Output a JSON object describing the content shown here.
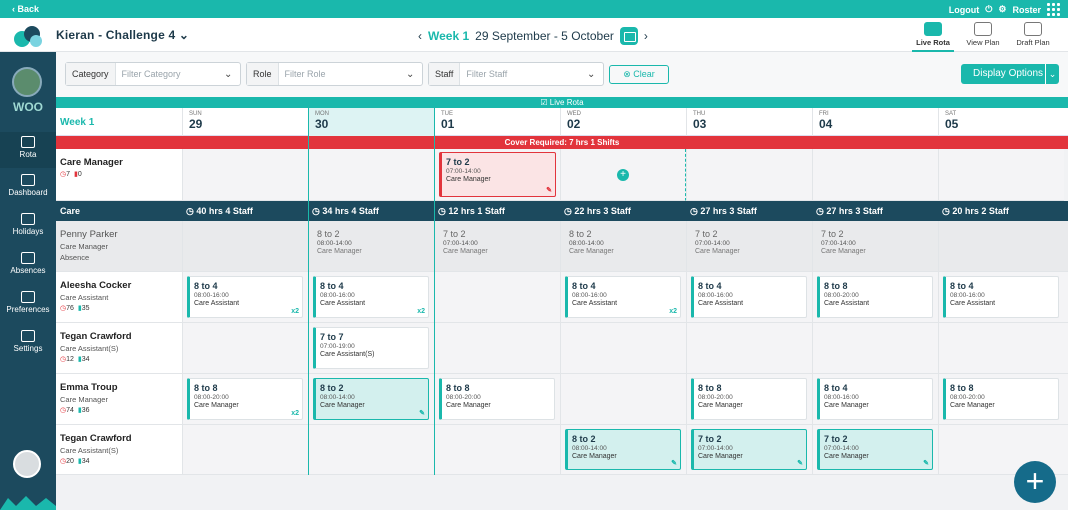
{
  "topbar": {
    "back": "‹ Back",
    "logout": "Logout",
    "roster": "Roster"
  },
  "header": {
    "home_title": "Kieran - Challenge 4",
    "week_label": "Week 1",
    "date_range": "29 September - 5 October",
    "views": [
      {
        "label": "Live Rota",
        "active": true
      },
      {
        "label": "View Plan"
      },
      {
        "label": "Draft Plan"
      }
    ]
  },
  "sidebar": {
    "org": "WOO",
    "items": [
      {
        "label": "Rota"
      },
      {
        "label": "Dashboard"
      },
      {
        "label": "Holidays"
      },
      {
        "label": "Absences"
      },
      {
        "label": "Preferences"
      },
      {
        "label": "Settings"
      }
    ]
  },
  "filters": {
    "category": {
      "label": "Category",
      "placeholder": "Filter Category"
    },
    "role": {
      "label": "Role",
      "placeholder": "Filter Role"
    },
    "staff": {
      "label": "Staff",
      "placeholder": "Filter Staff"
    },
    "clear": "Clear",
    "display_options": "Display Options"
  },
  "live_rota_label": "Live Rota",
  "week_col": "Week 1",
  "days": [
    {
      "dn": "SUN",
      "dd": "29"
    },
    {
      "dn": "MON",
      "dd": "30"
    },
    {
      "dn": "TUE",
      "dd": "01"
    },
    {
      "dn": "WED",
      "dd": "02"
    },
    {
      "dn": "THU",
      "dd": "03"
    },
    {
      "dn": "FRI",
      "dd": "04"
    },
    {
      "dn": "SAT",
      "dd": "05"
    }
  ],
  "cover": "Cover Required:  7 hrs   1 Shifts",
  "care_manager_row": {
    "name": "Care Manager",
    "hrs": "7",
    "shifts": "0"
  },
  "cover_shift": {
    "time": "7 to 2",
    "hours": "07:00-14:00",
    "role": "Care Manager"
  },
  "section": {
    "name": "Care",
    "summary": [
      "40 hrs   4 Staff",
      "34 hrs   4 Staff",
      "12 hrs   1 Staff",
      "22 hrs   3 Staff",
      "27 hrs   3 Staff",
      "27 hrs   3 Staff",
      "20 hrs   2 Staff"
    ]
  },
  "staff": [
    {
      "name": "Penny Parker",
      "role": "Care Manager",
      "status": "Absence"
    },
    {
      "name": "Aleesha Cocker",
      "role": "Care Assistant",
      "hrs": "76",
      "shifts": "35"
    },
    {
      "name": "Tegan Crawford",
      "role": "Care Assistant(S)",
      "hrs": "12",
      "shifts": "34"
    },
    {
      "name": "Emma Troup",
      "role": "Care Manager",
      "hrs": "74",
      "shifts": "36"
    },
    {
      "name": "Tegan Crawford",
      "role": "Care Assistant(S)",
      "hrs": "20",
      "shifts": "34"
    }
  ],
  "shifts": {
    "penny": [
      {
        "col": 1,
        "time": "8 to 2",
        "hours": "08:00-14:00",
        "role": "Care Manager"
      },
      {
        "col": 2,
        "time": "7 to 2",
        "hours": "07:00-14:00",
        "role": "Care Manager"
      },
      {
        "col": 3,
        "time": "8 to 2",
        "hours": "08:00-14:00",
        "role": "Care Manager"
      },
      {
        "col": 4,
        "time": "7 to 2",
        "hours": "07:00-14:00",
        "role": "Care Manager"
      },
      {
        "col": 5,
        "time": "7 to 2",
        "hours": "07:00-14:00",
        "role": "Care Manager"
      }
    ],
    "aleesha": [
      {
        "col": 0,
        "time": "8 to 4",
        "hours": "08:00-16:00",
        "role": "Care Assistant",
        "x2": "x2"
      },
      {
        "col": 1,
        "time": "8 to 4",
        "hours": "08:00-16:00",
        "role": "Care Assistant",
        "x2": "x2"
      },
      {
        "col": 3,
        "time": "8 to 4",
        "hours": "08:00-16:00",
        "role": "Care Assistant",
        "x2": "x2"
      },
      {
        "col": 4,
        "time": "8 to 4",
        "hours": "08:00-16:00",
        "role": "Care Assistant"
      },
      {
        "col": 5,
        "time": "8 to 8",
        "hours": "08:00-20:00",
        "role": "Care Assistant"
      },
      {
        "col": 6,
        "time": "8 to 4",
        "hours": "08:00-16:00",
        "role": "Care Assistant"
      }
    ],
    "tegan1": [
      {
        "col": 1,
        "time": "7 to 7",
        "hours": "07:00-19:00",
        "role": "Care Assistant(S)"
      }
    ],
    "emma": [
      {
        "col": 0,
        "time": "8 to 8",
        "hours": "08:00-20:00",
        "role": "Care Manager",
        "x2": "x2"
      },
      {
        "col": 1,
        "time": "8 to 2",
        "hours": "08:00-14:00",
        "role": "Care Manager",
        "sel": true
      },
      {
        "col": 2,
        "time": "8 to 8",
        "hours": "08:00-20:00",
        "role": "Care Manager"
      },
      {
        "col": 4,
        "time": "8 to 8",
        "hours": "08:00-20:00",
        "role": "Care Manager"
      },
      {
        "col": 5,
        "time": "8 to 4",
        "hours": "08:00-16:00",
        "role": "Care Manager"
      },
      {
        "col": 6,
        "time": "8 to 8",
        "hours": "08:00-20:00",
        "role": "Care Manager"
      }
    ],
    "tegan2": [
      {
        "col": 3,
        "time": "8 to 2",
        "hours": "08:00-14:00",
        "role": "Care Manager",
        "sel": true
      },
      {
        "col": 4,
        "time": "7 to 2",
        "hours": "07:00-14:00",
        "role": "Care Manager",
        "sel": true
      },
      {
        "col": 5,
        "time": "7 to 2",
        "hours": "07:00-14:00",
        "role": "Care Manager",
        "sel": true
      }
    ]
  }
}
